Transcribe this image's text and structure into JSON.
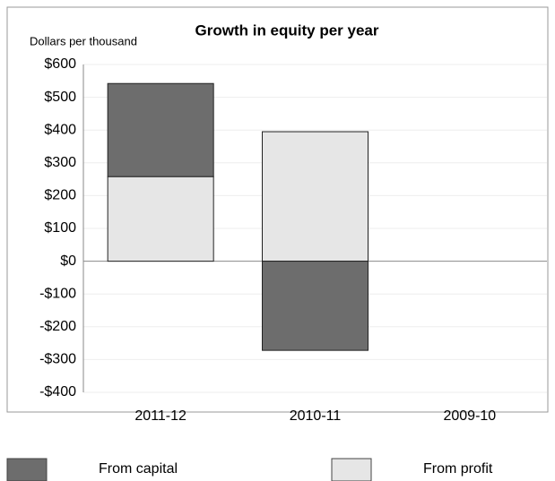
{
  "chart_data": {
    "type": "bar",
    "stacked": true,
    "title": "Growth in equity per year",
    "y_label": "Dollars per thousand",
    "categories": [
      "2011-12",
      "2010-11",
      "2009-10"
    ],
    "series": [
      {
        "name": "From profit",
        "color": "#e6e6e6",
        "values": [
          258,
          395,
          0
        ]
      },
      {
        "name": "From capital",
        "color": "#6d6d6d",
        "values": [
          284,
          -272,
          0
        ]
      }
    ],
    "legend_order": [
      1,
      0
    ],
    "ylim": [
      -400,
      600
    ],
    "yticks": [
      {
        "value": -400,
        "label": "-$400"
      },
      {
        "value": -300,
        "label": "-$300"
      },
      {
        "value": -200,
        "label": "-$200"
      },
      {
        "value": -100,
        "label": "-$100"
      },
      {
        "value": 0,
        "label": "$0"
      },
      {
        "value": 100,
        "label": "$100"
      },
      {
        "value": 200,
        "label": "$200"
      },
      {
        "value": 300,
        "label": "$300"
      },
      {
        "value": 400,
        "label": "$400"
      },
      {
        "value": 500,
        "label": "$500"
      },
      {
        "value": 600,
        "label": "$600"
      }
    ],
    "grid": true
  }
}
